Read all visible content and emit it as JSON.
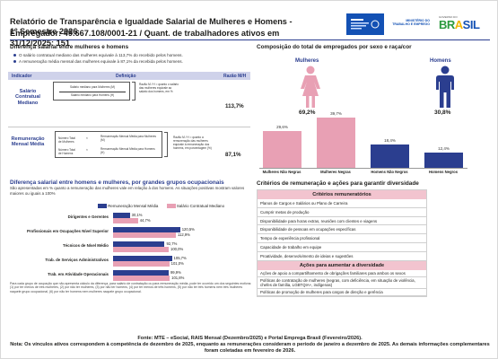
{
  "header": {
    "title": "Relatório de Transparência e Igualdade Salarial de Mulheres e Homens - 1º Semestre 2026",
    "subtitle": "Empregador: 49.667.108/0001-21 / Quant. de trabalhadores ativos em 31/12/2025: 151",
    "logo_left_text": "",
    "logo_mte": "MINISTÉRIO DO TRABALHO E EMPREGO",
    "logo_gov_top": "GOVERNO DO",
    "logo_gov_word": "BRASIL"
  },
  "salary_diff": {
    "heading": "Diferença salarial entre mulheres e homens",
    "bullets": [
      "O salário contratual mediano das mulheres equivale à 113,7% do recebido pelos homens.",
      "A remuneração média mensal das mulheres equivale à 87,1% da recebida pelos homens."
    ],
    "table_headers": {
      "indicator": "Indicador",
      "definition": "Definição",
      "ratio": "Razão M/H"
    },
    "rows": [
      {
        "label": "Salário Contratual Mediano",
        "value": "113,7%",
        "def_lines": [
          "Salário mediano para Mulheres (M)",
          "Salário mediano para Homens (H)"
        ],
        "def_explain": "Razão M / H = quanto o salário das mulheres equivale ao salário dos homens, em %"
      },
      {
        "label": "Remuneração Mensal Média",
        "value": "87,1%",
        "def_lines": [
          "Número Total de Mulheres",
          "Número Total de Homens"
        ],
        "def_mid": [
          "Remuneração Mensal Média para Mulheres (M)",
          "Remuneração Mensal Média para Homens (H)"
        ],
        "def_explain": "Razão M / H = quanto a remuneração das mulheres equivale à remuneração dos homens, em porcentagem (%)"
      }
    ]
  },
  "occupational": {
    "heading": "Diferença salarial entre homens e mulheres, por grandes grupos ocupacionais",
    "description": "São apresentadas em % quanto a remuneração das mulheres vale em relação à dos homens. As situações positivas mostram valores maiores ou iguais a 100%",
    "legend": [
      {
        "label": "Remuneração Mensal Média",
        "color": "#2b3e8f"
      },
      {
        "label": "Salário Contratual Mediano",
        "color": "#e8a0b4"
      }
    ],
    "footnote": "Para cada grupo de ocupação que não apresenta cálculo da diferença, para salário de contratação ou para remuneração média, pode ter ocorrido um dos seguintes motivos: (1) por ter menos de três mulheres, (2) por não ter mulheres, (3) por não ter homens, (4) por ter menos de três homens, (5) por não ter três homens nem três mulheres naquele grupo ocupacional, (6) por não ter homens nem mulheres naquele grupo ocupacional.",
    "categories": [
      {
        "name": "Dirigentes e Gerentes",
        "remuneracao": 30.1,
        "salario": 44.7,
        "remuneracao_label": "30,1%",
        "salario_label": "44,7%"
      },
      {
        "name": "Profissionais em Ocupações Nível Superior",
        "remuneracao": 120.5,
        "salario": 112.9,
        "remuneracao_label": "120,5%",
        "salario_label": "112,9%"
      },
      {
        "name": "Técnicos de Nível Médio",
        "remuneracao": 92.7,
        "salario": 100.0,
        "remuneracao_label": "92,7%",
        "salario_label": "100,0%"
      },
      {
        "name": "Trab. de Serviços Administrativos",
        "remuneracao": 105.7,
        "salario": 101.0,
        "remuneracao_label": "105,7%",
        "salario_label": "101,0%"
      },
      {
        "name": "Trab. em Atividade Operacionais",
        "remuneracao": 99.9,
        "salario": 101.8,
        "remuneracao_label": "99,9%",
        "salario_label": "101,8%"
      }
    ]
  },
  "composition": {
    "heading": "Composição do total de empregados por sexo e raça/cor",
    "women_label": "Mulheres",
    "women_pct": "69,2%",
    "men_label": "Homens",
    "men_pct": "30,8%",
    "women_color": "#e8a0b4",
    "men_color": "#2b3e8f"
  },
  "chart_data": {
    "type": "bar",
    "title": "Composição do total de empregados por sexo e raça/cor",
    "categories": [
      "Mulheres Não Negras",
      "Mulheres Negras",
      "Homens Não Negros",
      "Homens Negros"
    ],
    "values": [
      29.6,
      39.7,
      18.4,
      12.4
    ],
    "value_labels": [
      "29,6%",
      "39,7%",
      "18,4%",
      "12,4%"
    ],
    "colors": [
      "#e8a0b4",
      "#e8a0b4",
      "#2b3e8f",
      "#2b3e8f"
    ],
    "ylim": [
      0,
      40
    ]
  },
  "criteria": {
    "heading": "Critérios de remuneração e ações para garantir diversidade",
    "remun_title": "Critérios remuneratórios",
    "remun_items": [
      "Planos de Cargos e Salários ou Plano de Carreira",
      "Cumprir metas de produção",
      "Disponibilidade para horas extras, reuniões com clientes e viagens",
      "Disponibilidade de pessoas em ocupações específicas",
      "Tempo de experiência profissional",
      "Capacidade de trabalho em equipe",
      "Proatividade, desenvolvimento de ideias e sugestões"
    ],
    "actions_title": "Ações para aumentar a diversidade",
    "action_items": [
      "Ações de apoio a compartilhamento de obrigações familiares para ambos os sexos",
      "Políticas de contratação de mulheres (negras, com deficiência, em situação de violência, chefes de família, LGBTQIA+, indígenas)",
      "Políticas de promoção de mulheres para cargos de direção e gerência"
    ]
  },
  "footer": {
    "source": "Fonte: MTE – eSocial, RAIS Mensal (Dezembro/2025) e Portal Emprega Brasil (Fevereiro/2026).",
    "note": "Nota: Os vínculos ativos correspondem à competência de dezembro de 2025, enquanto as remunerações consideram o período de janeiro a dezembro de 2025. As demais informações complementares foram coletadas em fevereiro de 2026."
  }
}
